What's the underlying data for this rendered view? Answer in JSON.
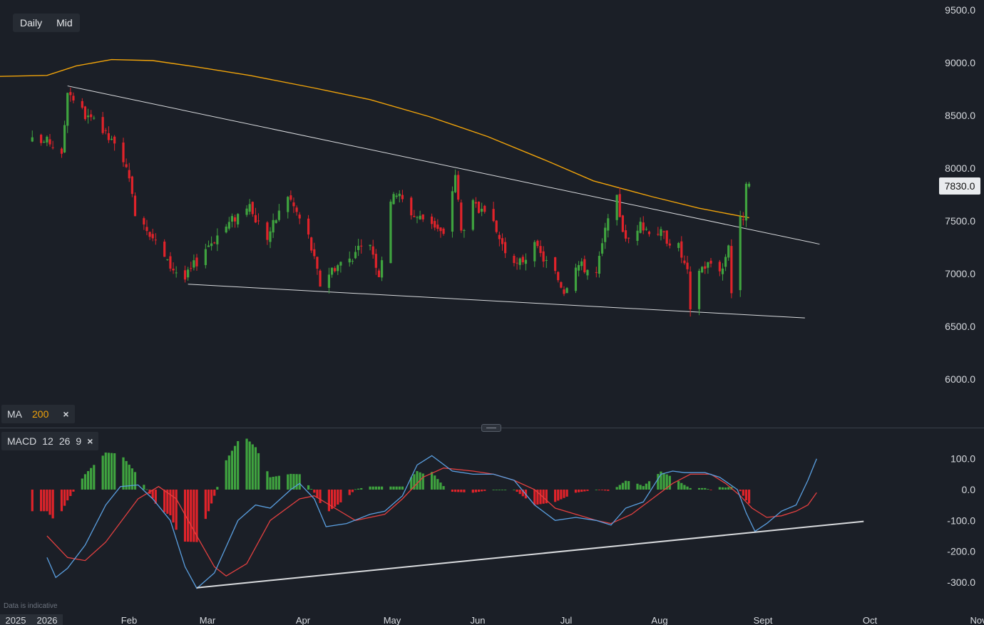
{
  "toolbar": {
    "interval": "Daily",
    "price_type": "Mid"
  },
  "indicators": {
    "ma": {
      "label": "MA",
      "period": "200",
      "close": "×"
    },
    "macd": {
      "label": "MACD",
      "fast": "12",
      "slow": "26",
      "signal": "9",
      "close": "×"
    }
  },
  "current_price": "7830.0",
  "disclaimer": "Data is indicative",
  "colors": {
    "background": "#1b1f27",
    "up": "#3fa33f",
    "down": "#e0232a",
    "ma": "#f0a30a",
    "macd_line": "#5a9fe0",
    "signal_line": "#e34040",
    "trendline": "#d9dbde"
  },
  "chart_data": [
    {
      "type": "candlestick",
      "price_axis": {
        "ticks": [
          "9500.0",
          "9000.0",
          "8500.0",
          "8000.0",
          "7500.0",
          "7000.0",
          "6500.0",
          "6000.0"
        ],
        "range": [
          5850,
          9600
        ]
      },
      "time_axis": {
        "year_labels": [
          "2025",
          "2026"
        ],
        "month_labels": [
          "Feb",
          "Mar",
          "Apr",
          "May",
          "Jun",
          "Jul",
          "Aug",
          "Sept",
          "Oct",
          "Nov"
        ]
      },
      "ohlc_anchor_closes": [
        [
          "2026-01-01",
          8250
        ],
        [
          "2026-01-05",
          8100
        ],
        [
          "2026-01-07",
          8750
        ],
        [
          "2026-01-13",
          8500
        ],
        [
          "2026-01-19",
          8350
        ],
        [
          "2026-01-26",
          8100
        ],
        [
          "2026-01-30",
          7600
        ],
        [
          "2026-02-03",
          7450
        ],
        [
          "2026-02-10",
          7100
        ],
        [
          "2026-02-16",
          6950
        ],
        [
          "2026-02-23",
          7250
        ],
        [
          "2026-03-02",
          7450
        ],
        [
          "2026-03-09",
          7650
        ],
        [
          "2026-03-16",
          7350
        ],
        [
          "2026-03-23",
          7750
        ],
        [
          "2026-03-30",
          7350
        ],
        [
          "2026-04-03",
          6900
        ],
        [
          "2026-04-07",
          7050
        ],
        [
          "2026-04-13",
          7150
        ],
        [
          "2026-04-20",
          7300
        ],
        [
          "2026-04-23",
          7000
        ],
        [
          "2026-04-28",
          7800
        ],
        [
          "2026-05-05",
          7550
        ],
        [
          "2026-05-11",
          7500
        ],
        [
          "2026-05-15",
          7350
        ],
        [
          "2026-05-19",
          7950
        ],
        [
          "2026-05-21",
          7400
        ],
        [
          "2026-05-25",
          7650
        ],
        [
          "2026-06-01",
          7450
        ],
        [
          "2026-06-08",
          7050
        ],
        [
          "2026-06-15",
          7250
        ],
        [
          "2026-06-22",
          7000
        ],
        [
          "2026-06-25",
          6850
        ],
        [
          "2026-06-29",
          7100
        ],
        [
          "2026-07-06",
          7000
        ],
        [
          "2026-07-09",
          7400
        ],
        [
          "2026-07-13",
          7700
        ],
        [
          "2026-07-16",
          7300
        ],
        [
          "2026-07-20",
          7450
        ],
        [
          "2026-07-27",
          7400
        ],
        [
          "2026-08-03",
          7250
        ],
        [
          "2026-08-06",
          7000
        ],
        [
          "2026-08-07",
          6620
        ],
        [
          "2026-08-10",
          7050
        ],
        [
          "2026-08-14",
          7100
        ],
        [
          "2026-08-18",
          7050
        ],
        [
          "2026-08-20",
          7300
        ],
        [
          "2026-08-21",
          6830
        ],
        [
          "2026-08-24",
          7500
        ],
        [
          "2026-08-25",
          7550
        ],
        [
          "2026-08-26",
          7800
        ],
        [
          "2026-08-27",
          7830
        ]
      ],
      "ma_200": [
        [
          "2025-12-31",
          8880
        ],
        [
          "2026-01-10",
          8970
        ],
        [
          "2026-01-22",
          9030
        ],
        [
          "2026-02-05",
          9020
        ],
        [
          "2026-02-20",
          8960
        ],
        [
          "2026-03-10",
          8880
        ],
        [
          "2026-04-01",
          8760
        ],
        [
          "2026-04-20",
          8650
        ],
        [
          "2026-05-10",
          8490
        ],
        [
          "2026-05-30",
          8300
        ],
        [
          "2026-06-20",
          8060
        ],
        [
          "2026-07-05",
          7880
        ],
        [
          "2026-07-25",
          7730
        ],
        [
          "2026-08-10",
          7620
        ],
        [
          "2026-08-27",
          7530
        ]
      ],
      "trendlines": [
        {
          "from": [
            "2026-01-07",
            8780
          ],
          "to": [
            "2026-09-20",
            7280
          ]
        },
        {
          "from": [
            "2026-02-17",
            6900
          ],
          "to": [
            "2026-09-15",
            6580
          ]
        }
      ]
    },
    {
      "type": "macd",
      "y_axis": {
        "ticks": [
          "100.0",
          "0.0",
          "-100.0",
          "-200.0",
          "-300.0"
        ],
        "range": [
          -340,
          130
        ]
      },
      "macd_line": [
        [
          "2025-12-31",
          -220
        ],
        [
          "2026-01-03",
          -285
        ],
        [
          "2026-01-07",
          -255
        ],
        [
          "2026-01-13",
          -180
        ],
        [
          "2026-01-20",
          -50
        ],
        [
          "2026-01-25",
          10
        ],
        [
          "2026-01-31",
          15
        ],
        [
          "2026-02-05",
          -30
        ],
        [
          "2026-02-11",
          -100
        ],
        [
          "2026-02-16",
          -250
        ],
        [
          "2026-02-20",
          -320
        ],
        [
          "2026-02-26",
          -270
        ],
        [
          "2026-03-06",
          -100
        ],
        [
          "2026-03-12",
          -50
        ],
        [
          "2026-03-17",
          -60
        ],
        [
          "2026-03-24",
          0
        ],
        [
          "2026-03-27",
          20
        ],
        [
          "2026-04-01",
          -30
        ],
        [
          "2026-04-05",
          -120
        ],
        [
          "2026-04-12",
          -110
        ],
        [
          "2026-04-20",
          -80
        ],
        [
          "2026-04-25",
          -70
        ],
        [
          "2026-05-01",
          -20
        ],
        [
          "2026-05-06",
          80
        ],
        [
          "2026-05-11",
          110
        ],
        [
          "2026-05-18",
          60
        ],
        [
          "2026-05-25",
          50
        ],
        [
          "2026-06-01",
          50
        ],
        [
          "2026-06-08",
          30
        ],
        [
          "2026-06-15",
          -50
        ],
        [
          "2026-06-22",
          -100
        ],
        [
          "2026-06-29",
          -90
        ],
        [
          "2026-07-06",
          -100
        ],
        [
          "2026-07-11",
          -115
        ],
        [
          "2026-07-16",
          -60
        ],
        [
          "2026-07-22",
          -40
        ],
        [
          "2026-07-28",
          50
        ],
        [
          "2026-08-01",
          60
        ],
        [
          "2026-08-05",
          55
        ],
        [
          "2026-08-12",
          55
        ],
        [
          "2026-08-17",
          40
        ],
        [
          "2026-08-23",
          0
        ],
        [
          "2026-08-26",
          -75
        ],
        [
          "2026-08-29",
          -135
        ],
        [
          "2026-09-02",
          -110
        ],
        [
          "2026-09-07",
          -70
        ],
        [
          "2026-09-12",
          -50
        ],
        [
          "2026-09-16",
          30
        ],
        [
          "2026-09-19",
          100
        ]
      ],
      "signal_line": [
        [
          "2025-12-31",
          -150
        ],
        [
          "2026-01-07",
          -220
        ],
        [
          "2026-01-13",
          -230
        ],
        [
          "2026-01-20",
          -170
        ],
        [
          "2026-01-31",
          -30
        ],
        [
          "2026-02-07",
          10
        ],
        [
          "2026-02-13",
          -30
        ],
        [
          "2026-02-20",
          -150
        ],
        [
          "2026-02-26",
          -250
        ],
        [
          "2026-03-02",
          -280
        ],
        [
          "2026-03-09",
          -240
        ],
        [
          "2026-03-17",
          -100
        ],
        [
          "2026-03-27",
          -30
        ],
        [
          "2026-04-01",
          -20
        ],
        [
          "2026-04-08",
          -60
        ],
        [
          "2026-04-15",
          -100
        ],
        [
          "2026-04-25",
          -80
        ],
        [
          "2026-05-01",
          -30
        ],
        [
          "2026-05-08",
          40
        ],
        [
          "2026-05-15",
          70
        ],
        [
          "2026-05-25",
          60
        ],
        [
          "2026-06-01",
          50
        ],
        [
          "2026-06-08",
          30
        ],
        [
          "2026-06-15",
          0
        ],
        [
          "2026-06-22",
          -60
        ],
        [
          "2026-06-29",
          -80
        ],
        [
          "2026-07-06",
          -100
        ],
        [
          "2026-07-11",
          -110
        ],
        [
          "2026-07-18",
          -80
        ],
        [
          "2026-07-25",
          -30
        ],
        [
          "2026-08-01",
          20
        ],
        [
          "2026-08-07",
          50
        ],
        [
          "2026-08-14",
          50
        ],
        [
          "2026-08-19",
          20
        ],
        [
          "2026-08-24",
          -20
        ],
        [
          "2026-08-28",
          -60
        ],
        [
          "2026-09-02",
          -90
        ],
        [
          "2026-09-07",
          -85
        ],
        [
          "2026-09-12",
          -70
        ],
        [
          "2026-09-16",
          -50
        ],
        [
          "2026-09-19",
          -10
        ]
      ],
      "trendline": {
        "from": [
          "2026-02-20",
          -318
        ],
        "to": [
          "2026-10-05",
          -103
        ]
      }
    }
  ]
}
